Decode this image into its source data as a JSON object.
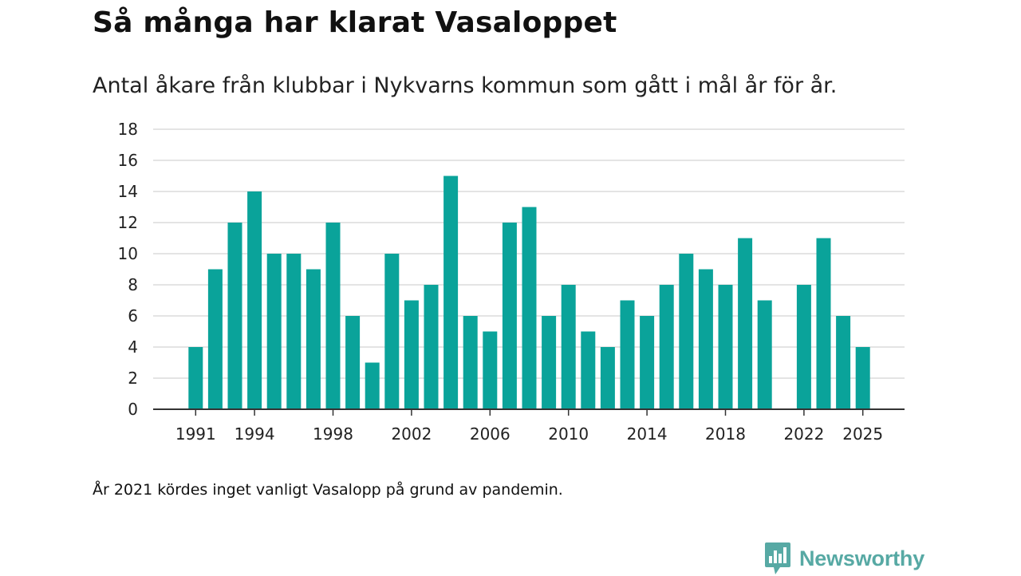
{
  "header": {
    "title": "Så många har klarat Vasaloppet",
    "subtitle": "Antal åkare från klubbar i Nykvarns kommun som gått i mål år för år."
  },
  "footnote": "År 2021 kördes inget vanligt Vasalopp på grund av pandemin.",
  "brand": {
    "name": "Newsworthy",
    "logo_icon": "newsworthy-logo-icon",
    "color": "#57a9a4"
  },
  "chart_data": {
    "type": "bar",
    "title": "Så många har klarat Vasaloppet",
    "subtitle": "Antal åkare från klubbar i Nykvarns kommun som gått i mål år för år.",
    "xlabel": "",
    "ylabel": "",
    "bar_color": "#0aa39a",
    "ylim": [
      0,
      18
    ],
    "y_ticks": [
      0,
      2,
      4,
      6,
      8,
      10,
      12,
      14,
      16,
      18
    ],
    "x_ticks": [
      "1991",
      "1994",
      "1998",
      "2002",
      "2006",
      "2010",
      "2014",
      "2018",
      "2022",
      "2025"
    ],
    "grid": true,
    "categories": [
      1991,
      1992,
      1993,
      1994,
      1995,
      1996,
      1997,
      1998,
      1999,
      2000,
      2001,
      2002,
      2003,
      2004,
      2005,
      2006,
      2007,
      2008,
      2009,
      2010,
      2011,
      2012,
      2013,
      2014,
      2015,
      2016,
      2017,
      2018,
      2019,
      2020,
      2021,
      2022,
      2023,
      2024,
      2025
    ],
    "values": [
      4,
      9,
      12,
      14,
      10,
      10,
      9,
      12,
      6,
      3,
      10,
      7,
      8,
      15,
      6,
      5,
      12,
      13,
      6,
      8,
      5,
      4,
      7,
      6,
      8,
      10,
      9,
      8,
      11,
      7,
      null,
      8,
      11,
      6,
      4
    ]
  }
}
